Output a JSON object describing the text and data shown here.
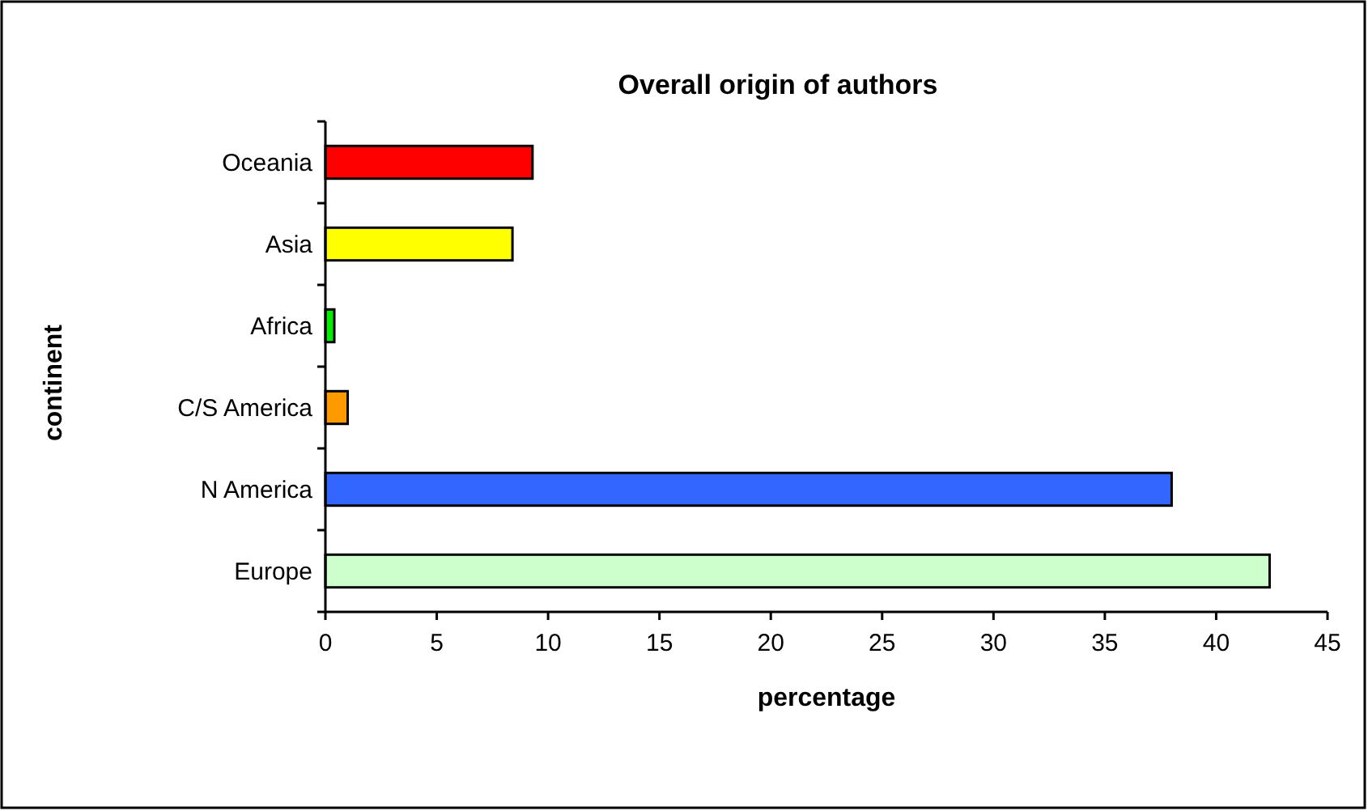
{
  "chart_data": {
    "type": "bar",
    "orientation": "horizontal",
    "title": "Overall origin of authors",
    "xlabel": "percentage",
    "ylabel": "continent",
    "categories": [
      "Oceania",
      "Asia",
      "Africa",
      "C/S America",
      "N America",
      "Europe"
    ],
    "values": [
      9.3,
      8.4,
      0.4,
      1.0,
      38.0,
      42.4
    ],
    "colors": [
      "#ff0000",
      "#ffff00",
      "#00ee00",
      "#ff9900",
      "#3366ff",
      "#ccffcc"
    ],
    "xlim": [
      0,
      45
    ],
    "xticks": [
      0,
      5,
      10,
      15,
      20,
      25,
      30,
      35,
      40,
      45
    ],
    "grid": false
  }
}
